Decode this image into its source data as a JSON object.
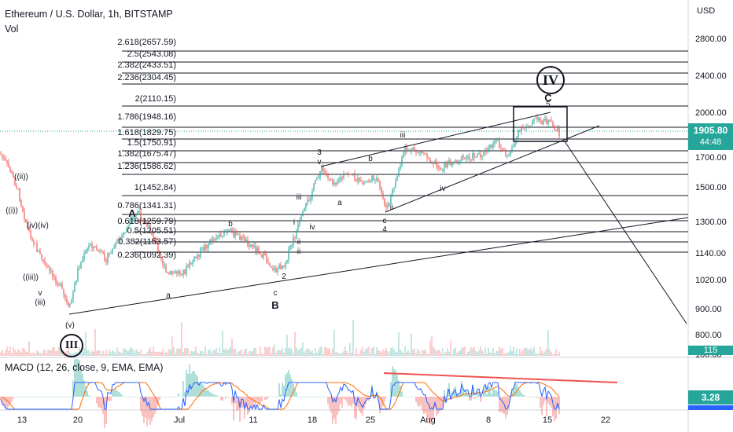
{
  "header": {
    "title": "Ethereum / U.S. Dollar, 1h, BITSTAMP",
    "volume_label": "Vol"
  },
  "price_axis": {
    "currency": "USD",
    "ticks": [
      "2800.00",
      "2400.00",
      "2000.00",
      "1700.00",
      "1500.00",
      "1300.00",
      "1140.00",
      "1020.00",
      "900.00",
      "800.00",
      "100.00"
    ],
    "current_price": "1905.80",
    "countdown": "44:48",
    "volume_value": "115"
  },
  "time_axis": {
    "ticks": [
      "13",
      "20",
      "Jul",
      "11",
      "18",
      "25",
      "Aug",
      "8",
      "15",
      "22"
    ]
  },
  "fib_levels": [
    "2.618(2657.59)",
    "2.5(2543.08)",
    "2.382(2433.51)",
    "2.236(2304.45)",
    "2(2110.15)",
    "1.786(1948.16)",
    "1.618(1829.75)",
    "1.5(1750.91)",
    "1.382(1675.47)",
    "1.236(1586.62)",
    "1(1452.84)",
    "0.786(1341.31)",
    "0.618(1259.79)",
    "0.5(1205.51)",
    "0.382(1153.57)",
    "0.236(1092.39)"
  ],
  "wave_labels": {
    "big_iv": "IV",
    "big_iii": "III",
    "c_top": "C",
    "five_top": "5",
    "A": "A",
    "B": "B",
    "ii_paren": "((ii))",
    "i_paren": "((i))",
    "iv_pair": "(iv)(iv)",
    "iii_paren": "((iii))",
    "v_small": "v",
    "iii_single": "(iii)",
    "v_paren": "(v)",
    "a1": "a",
    "b1": "b",
    "c1": "c",
    "two": "2",
    "three": "3",
    "v2": "v",
    "a2": "a",
    "b2": "b",
    "iii2": "iii",
    "iv2": "iv",
    "ii2": "ii",
    "iii3": "iii",
    "i3": "i",
    "iv3": "iv",
    "ii3": "ii",
    "c2": "c",
    "four": "4",
    "ii4": "ii"
  },
  "macd": {
    "title": "MACD (12, 26, close, 9, EMA, EMA)",
    "value": "3.28"
  },
  "colors": {
    "up": "#26a69a",
    "down": "#ef5350",
    "macd_line": "#2962ff",
    "signal_line": "#ff6d00",
    "divergence": "#ef5350"
  }
}
